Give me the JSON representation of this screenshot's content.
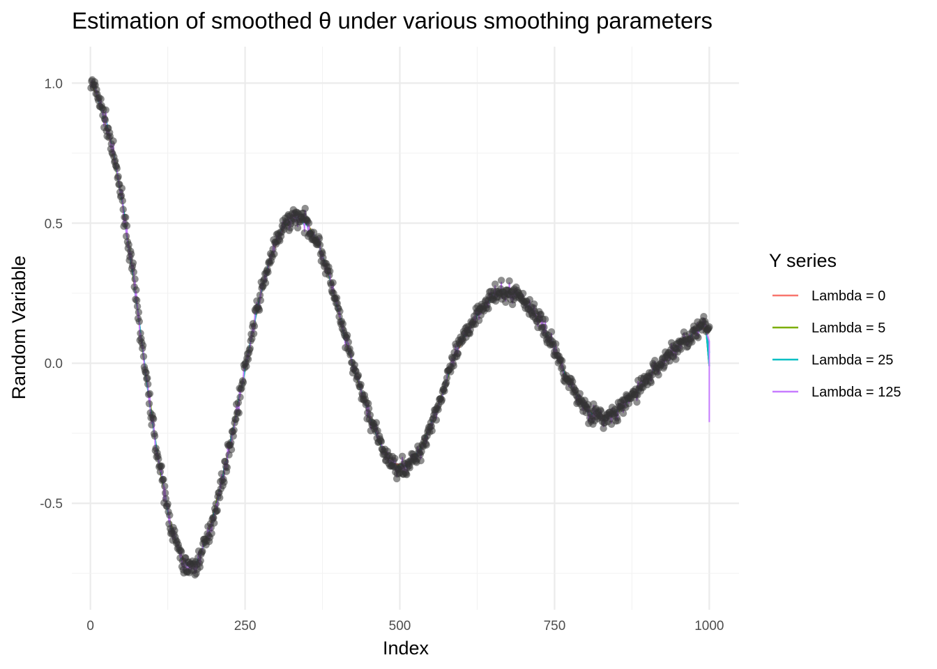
{
  "chart_data": {
    "type": "line",
    "title": "Estimation of smoothed  θ  under various smoothing parameters",
    "xlabel": "Index",
    "ylabel": "Random Variable",
    "xlim": [
      -30,
      1048
    ],
    "ylim": [
      -0.88,
      1.13
    ],
    "x_ticks": [
      0,
      250,
      500,
      750,
      1000
    ],
    "x_tick_labels": [
      "0",
      "250",
      "500",
      "750",
      "1000"
    ],
    "y_ticks": [
      -0.5,
      0.0,
      0.5,
      1.0
    ],
    "y_tick_labels": [
      "-0.5",
      "0.0",
      "0.5",
      "1.0"
    ],
    "grid": true,
    "legend": {
      "title": "Y series",
      "position": "right",
      "entries": [
        "Lambda = 0",
        "Lambda = 5",
        "Lambda = 25",
        "Lambda = 125"
      ]
    },
    "points": {
      "color": "#333333",
      "x_start": 1,
      "x_end": 1000,
      "y_trend": [
        [
          1,
          1.0
        ],
        [
          10,
          0.97
        ],
        [
          30,
          0.82
        ],
        [
          50,
          0.6
        ],
        [
          70,
          0.3
        ],
        [
          90,
          -0.05
        ],
        [
          110,
          -0.35
        ],
        [
          130,
          -0.58
        ],
        [
          150,
          -0.72
        ],
        [
          170,
          -0.73
        ],
        [
          190,
          -0.62
        ],
        [
          210,
          -0.45
        ],
        [
          230,
          -0.25
        ],
        [
          250,
          -0.02
        ],
        [
          270,
          0.2
        ],
        [
          290,
          0.37
        ],
        [
          310,
          0.48
        ],
        [
          330,
          0.53
        ],
        [
          350,
          0.5
        ],
        [
          370,
          0.42
        ],
        [
          390,
          0.28
        ],
        [
          410,
          0.1
        ],
        [
          430,
          -0.05
        ],
        [
          450,
          -0.18
        ],
        [
          470,
          -0.3
        ],
        [
          490,
          -0.37
        ],
        [
          510,
          -0.37
        ],
        [
          530,
          -0.33
        ],
        [
          550,
          -0.22
        ],
        [
          570,
          -0.1
        ],
        [
          590,
          0.03
        ],
        [
          610,
          0.12
        ],
        [
          630,
          0.2
        ],
        [
          650,
          0.24
        ],
        [
          670,
          0.25
        ],
        [
          690,
          0.25
        ],
        [
          710,
          0.2
        ],
        [
          730,
          0.14
        ],
        [
          750,
          0.05
        ],
        [
          770,
          -0.05
        ],
        [
          790,
          -0.13
        ],
        [
          810,
          -0.18
        ],
        [
          830,
          -0.2
        ],
        [
          850,
          -0.18
        ],
        [
          870,
          -0.13
        ],
        [
          890,
          -0.08
        ],
        [
          910,
          -0.03
        ],
        [
          930,
          0.02
        ],
        [
          950,
          0.06
        ],
        [
          970,
          0.1
        ],
        [
          990,
          0.13
        ],
        [
          1000,
          0.12
        ]
      ]
    },
    "series": [
      {
        "name": "Lambda = 0",
        "color": "#F8766D",
        "points": [
          [
            1,
            1.0
          ],
          [
            10,
            0.96
          ],
          [
            30,
            0.82
          ],
          [
            50,
            0.6
          ],
          [
            70,
            0.3
          ],
          [
            90,
            -0.05
          ],
          [
            110,
            -0.35
          ],
          [
            130,
            -0.58
          ],
          [
            150,
            -0.71
          ],
          [
            170,
            -0.72
          ],
          [
            190,
            -0.61
          ],
          [
            210,
            -0.44
          ],
          [
            230,
            -0.24
          ],
          [
            250,
            -0.02
          ],
          [
            270,
            0.2
          ],
          [
            290,
            0.37
          ],
          [
            310,
            0.48
          ],
          [
            330,
            0.52
          ],
          [
            350,
            0.5
          ],
          [
            370,
            0.42
          ],
          [
            390,
            0.28
          ],
          [
            410,
            0.1
          ],
          [
            430,
            -0.05
          ],
          [
            450,
            -0.18
          ],
          [
            470,
            -0.3
          ],
          [
            490,
            -0.36
          ],
          [
            510,
            -0.36
          ],
          [
            530,
            -0.32
          ],
          [
            550,
            -0.22
          ],
          [
            570,
            -0.1
          ],
          [
            590,
            0.03
          ],
          [
            610,
            0.12
          ],
          [
            630,
            0.19
          ],
          [
            650,
            0.24
          ],
          [
            670,
            0.25
          ],
          [
            690,
            0.24
          ],
          [
            710,
            0.2
          ],
          [
            730,
            0.14
          ],
          [
            750,
            0.05
          ],
          [
            770,
            -0.05
          ],
          [
            790,
            -0.13
          ],
          [
            810,
            -0.18
          ],
          [
            830,
            -0.19
          ],
          [
            850,
            -0.18
          ],
          [
            870,
            -0.13
          ],
          [
            890,
            -0.08
          ],
          [
            910,
            -0.03
          ],
          [
            930,
            0.02
          ],
          [
            950,
            0.06
          ],
          [
            970,
            0.1
          ],
          [
            990,
            0.13
          ],
          [
            995,
            0.12
          ],
          [
            1000,
            -0.01
          ]
        ]
      },
      {
        "name": "Lambda = 5",
        "color": "#7CAE00",
        "points": [
          [
            1,
            1.0
          ],
          [
            10,
            0.96
          ],
          [
            30,
            0.82
          ],
          [
            50,
            0.6
          ],
          [
            70,
            0.3
          ],
          [
            90,
            -0.05
          ],
          [
            110,
            -0.35
          ],
          [
            130,
            -0.58
          ],
          [
            150,
            -0.71
          ],
          [
            170,
            -0.72
          ],
          [
            190,
            -0.61
          ],
          [
            210,
            -0.44
          ],
          [
            230,
            -0.24
          ],
          [
            250,
            -0.02
          ],
          [
            270,
            0.2
          ],
          [
            290,
            0.37
          ],
          [
            310,
            0.48
          ],
          [
            330,
            0.52
          ],
          [
            350,
            0.5
          ],
          [
            370,
            0.42
          ],
          [
            390,
            0.28
          ],
          [
            410,
            0.1
          ],
          [
            430,
            -0.05
          ],
          [
            450,
            -0.18
          ],
          [
            470,
            -0.3
          ],
          [
            490,
            -0.36
          ],
          [
            510,
            -0.36
          ],
          [
            530,
            -0.32
          ],
          [
            550,
            -0.22
          ],
          [
            570,
            -0.1
          ],
          [
            590,
            0.03
          ],
          [
            610,
            0.12
          ],
          [
            630,
            0.19
          ],
          [
            650,
            0.24
          ],
          [
            670,
            0.25
          ],
          [
            690,
            0.24
          ],
          [
            710,
            0.2
          ],
          [
            730,
            0.14
          ],
          [
            750,
            0.05
          ],
          [
            770,
            -0.05
          ],
          [
            790,
            -0.13
          ],
          [
            810,
            -0.18
          ],
          [
            830,
            -0.19
          ],
          [
            850,
            -0.18
          ],
          [
            870,
            -0.13
          ],
          [
            890,
            -0.08
          ],
          [
            910,
            -0.03
          ],
          [
            930,
            0.02
          ],
          [
            950,
            0.06
          ],
          [
            970,
            0.1
          ],
          [
            990,
            0.13
          ],
          [
            995,
            0.12
          ],
          [
            1000,
            -0.01
          ]
        ]
      },
      {
        "name": "Lambda = 25",
        "color": "#00BFC4",
        "points": [
          [
            1,
            1.0
          ],
          [
            10,
            0.96
          ],
          [
            30,
            0.82
          ],
          [
            50,
            0.6
          ],
          [
            70,
            0.3
          ],
          [
            90,
            -0.05
          ],
          [
            110,
            -0.35
          ],
          [
            130,
            -0.58
          ],
          [
            150,
            -0.71
          ],
          [
            170,
            -0.72
          ],
          [
            190,
            -0.61
          ],
          [
            210,
            -0.44
          ],
          [
            230,
            -0.24
          ],
          [
            250,
            -0.02
          ],
          [
            270,
            0.2
          ],
          [
            290,
            0.37
          ],
          [
            310,
            0.48
          ],
          [
            330,
            0.52
          ],
          [
            350,
            0.5
          ],
          [
            370,
            0.42
          ],
          [
            390,
            0.28
          ],
          [
            410,
            0.1
          ],
          [
            430,
            -0.05
          ],
          [
            450,
            -0.18
          ],
          [
            470,
            -0.3
          ],
          [
            490,
            -0.36
          ],
          [
            510,
            -0.36
          ],
          [
            530,
            -0.32
          ],
          [
            550,
            -0.22
          ],
          [
            570,
            -0.1
          ],
          [
            590,
            0.03
          ],
          [
            610,
            0.12
          ],
          [
            630,
            0.19
          ],
          [
            650,
            0.24
          ],
          [
            670,
            0.25
          ],
          [
            690,
            0.24
          ],
          [
            710,
            0.2
          ],
          [
            730,
            0.14
          ],
          [
            750,
            0.05
          ],
          [
            770,
            -0.05
          ],
          [
            790,
            -0.13
          ],
          [
            810,
            -0.18
          ],
          [
            830,
            -0.19
          ],
          [
            850,
            -0.18
          ],
          [
            870,
            -0.13
          ],
          [
            890,
            -0.08
          ],
          [
            910,
            -0.03
          ],
          [
            930,
            0.02
          ],
          [
            950,
            0.06
          ],
          [
            970,
            0.1
          ],
          [
            990,
            0.13
          ],
          [
            995,
            0.12
          ],
          [
            1000,
            -0.01
          ]
        ]
      },
      {
        "name": "Lambda = 125",
        "color": "#C77CFF",
        "points": [
          [
            1,
            1.0
          ],
          [
            10,
            0.96
          ],
          [
            30,
            0.82
          ],
          [
            50,
            0.6
          ],
          [
            70,
            0.3
          ],
          [
            90,
            -0.05
          ],
          [
            110,
            -0.35
          ],
          [
            130,
            -0.58
          ],
          [
            150,
            -0.71
          ],
          [
            170,
            -0.72
          ],
          [
            190,
            -0.61
          ],
          [
            210,
            -0.44
          ],
          [
            230,
            -0.24
          ],
          [
            250,
            -0.02
          ],
          [
            270,
            0.2
          ],
          [
            290,
            0.37
          ],
          [
            310,
            0.48
          ],
          [
            330,
            0.52
          ],
          [
            350,
            0.5
          ],
          [
            370,
            0.42
          ],
          [
            390,
            0.28
          ],
          [
            410,
            0.1
          ],
          [
            430,
            -0.05
          ],
          [
            450,
            -0.18
          ],
          [
            470,
            -0.3
          ],
          [
            490,
            -0.36
          ],
          [
            510,
            -0.36
          ],
          [
            530,
            -0.32
          ],
          [
            550,
            -0.22
          ],
          [
            570,
            -0.1
          ],
          [
            590,
            0.03
          ],
          [
            610,
            0.12
          ],
          [
            630,
            0.19
          ],
          [
            650,
            0.24
          ],
          [
            670,
            0.25
          ],
          [
            690,
            0.24
          ],
          [
            710,
            0.2
          ],
          [
            730,
            0.14
          ],
          [
            750,
            0.05
          ],
          [
            770,
            -0.05
          ],
          [
            790,
            -0.13
          ],
          [
            810,
            -0.18
          ],
          [
            830,
            -0.19
          ],
          [
            850,
            -0.18
          ],
          [
            870,
            -0.13
          ],
          [
            890,
            -0.08
          ],
          [
            910,
            -0.03
          ],
          [
            930,
            0.02
          ],
          [
            950,
            0.06
          ],
          [
            970,
            0.1
          ],
          [
            990,
            0.13
          ],
          [
            995,
            0.12
          ],
          [
            1000,
            -0.21
          ]
        ]
      }
    ]
  }
}
